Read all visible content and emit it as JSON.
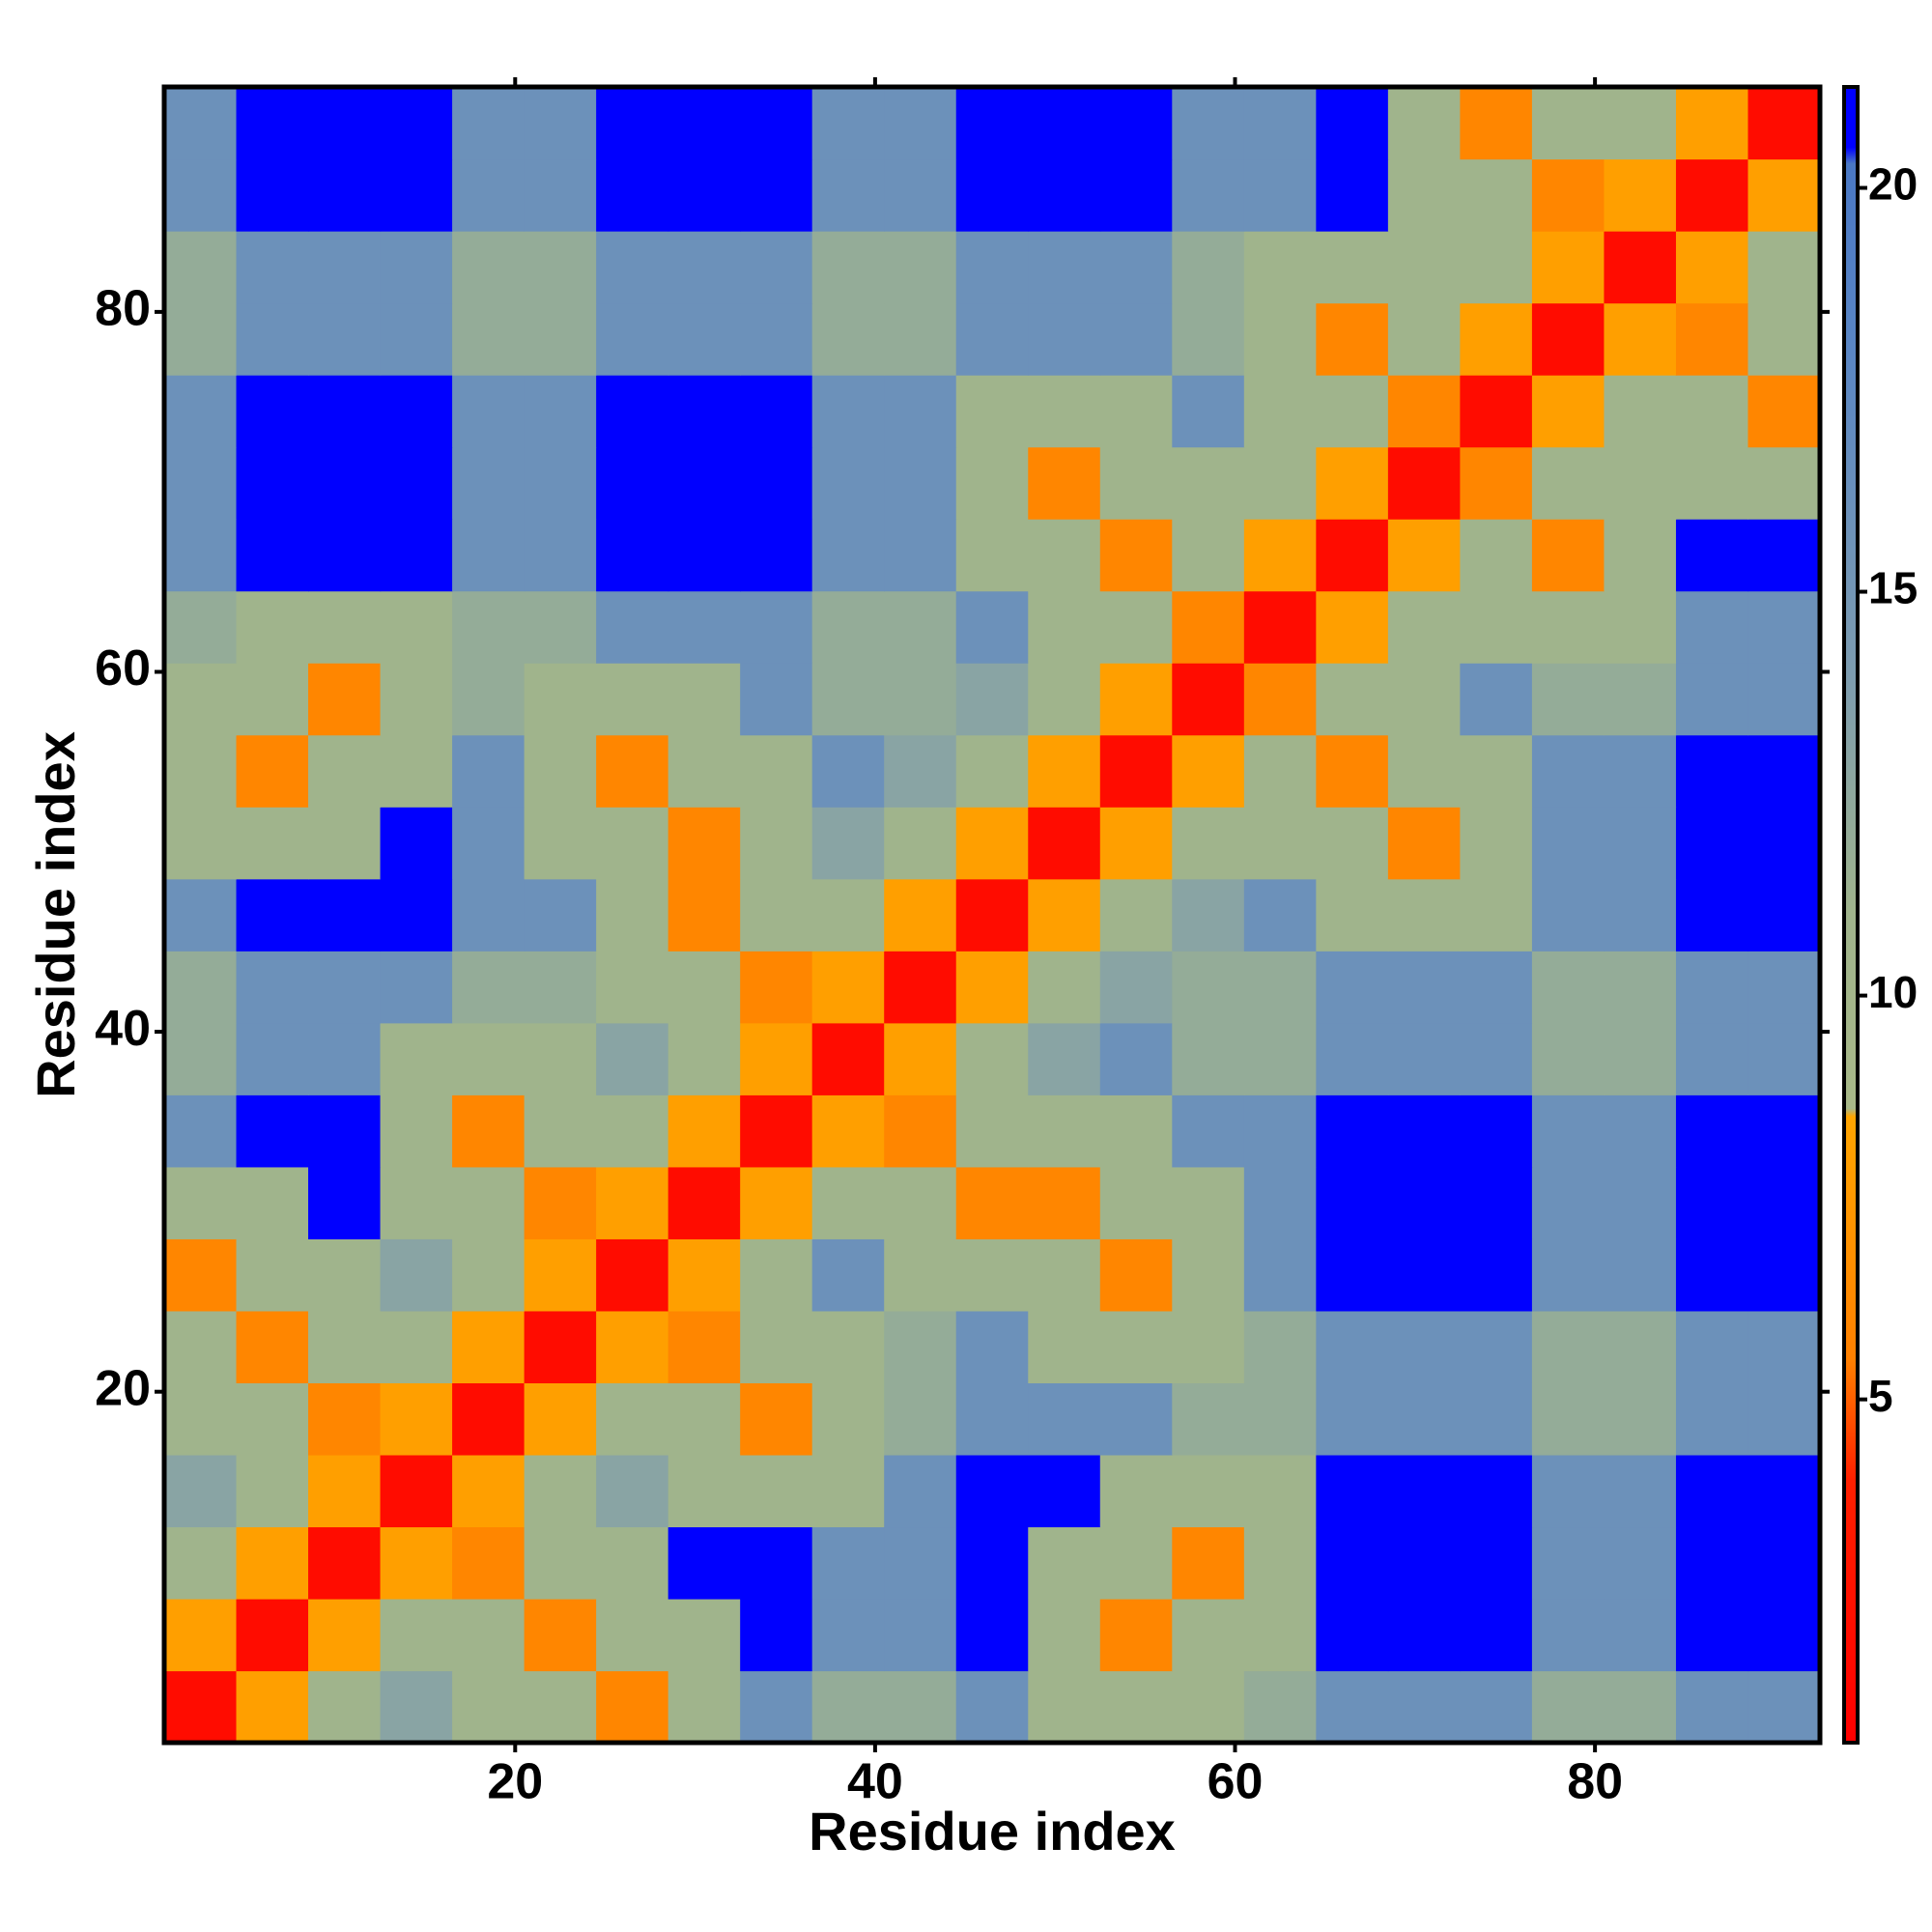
{
  "chart_data": {
    "type": "heatmap",
    "x_label": "Residue index",
    "y_label": "Residue index",
    "x": [
      2.5,
      6.5,
      10.5,
      14.5,
      18.5,
      22.5,
      26.5,
      30.5,
      34.5,
      38.5,
      42.5,
      46.5,
      50.5,
      54.5,
      58.5,
      62.5,
      66.5,
      70.5,
      74.5,
      78.5,
      82.5,
      86.5,
      90.5
    ],
    "y": [
      2.5,
      6.5,
      10.5,
      14.5,
      18.5,
      22.5,
      26.5,
      30.5,
      34.5,
      38.5,
      42.5,
      46.5,
      50.5,
      54.5,
      58.5,
      62.5,
      66.5,
      70.5,
      74.5,
      78.5,
      82.5,
      86.5,
      90.5
    ],
    "cell_size": 4,
    "z": [
      [
        2,
        8,
        11,
        13,
        11,
        11,
        6,
        11,
        16,
        12,
        12,
        16,
        11,
        11,
        11,
        12,
        16,
        16,
        16,
        12,
        12,
        16,
        16
      ],
      [
        8,
        2,
        8,
        11,
        11,
        6,
        11,
        11,
        21,
        16,
        16,
        21,
        11,
        6,
        11,
        11,
        21,
        21,
        21,
        16,
        16,
        21,
        21
      ],
      [
        11,
        8,
        2,
        8,
        6,
        11,
        11,
        21,
        21,
        16,
        16,
        21,
        11,
        11,
        6,
        11,
        21,
        21,
        21,
        16,
        16,
        21,
        21
      ],
      [
        13,
        11,
        8,
        2,
        8,
        11,
        13,
        11,
        11,
        11,
        16,
        21,
        21,
        11,
        11,
        11,
        21,
        21,
        21,
        16,
        16,
        21,
        21
      ],
      [
        11,
        11,
        6,
        8,
        2,
        8,
        11,
        11,
        6,
        11,
        12,
        16,
        16,
        16,
        12,
        12,
        16,
        16,
        16,
        12,
        12,
        16,
        16
      ],
      [
        11,
        6,
        11,
        11,
        8,
        2,
        8,
        6,
        11,
        11,
        12,
        16,
        11,
        11,
        11,
        12,
        16,
        16,
        16,
        12,
        12,
        16,
        16
      ],
      [
        6,
        11,
        11,
        13,
        11,
        8,
        2,
        8,
        11,
        16,
        11,
        11,
        11,
        6,
        11,
        16,
        21,
        21,
        21,
        16,
        16,
        21,
        21
      ],
      [
        11,
        11,
        21,
        11,
        11,
        6,
        8,
        2,
        8,
        11,
        11,
        6,
        6,
        11,
        11,
        16,
        21,
        21,
        21,
        16,
        16,
        21,
        21
      ],
      [
        16,
        21,
        21,
        11,
        6,
        11,
        11,
        8,
        2,
        8,
        6,
        11,
        11,
        11,
        16,
        16,
        21,
        21,
        21,
        16,
        16,
        21,
        21
      ],
      [
        12,
        16,
        16,
        11,
        11,
        11,
        13,
        11,
        8,
        2,
        8,
        11,
        13,
        16,
        12,
        12,
        16,
        16,
        16,
        12,
        12,
        16,
        16
      ],
      [
        12,
        16,
        16,
        16,
        12,
        12,
        11,
        11,
        6,
        8,
        2,
        8,
        11,
        13,
        12,
        12,
        16,
        16,
        16,
        12,
        12,
        16,
        16
      ],
      [
        16,
        21,
        21,
        21,
        16,
        16,
        11,
        6,
        11,
        11,
        8,
        2,
        8,
        11,
        13,
        16,
        11,
        11,
        11,
        16,
        16,
        21,
        21
      ],
      [
        11,
        11,
        11,
        21,
        16,
        11,
        11,
        6,
        11,
        13,
        11,
        8,
        2,
        8,
        11,
        11,
        11,
        6,
        11,
        16,
        16,
        21,
        21
      ],
      [
        11,
        6,
        11,
        11,
        16,
        11,
        6,
        11,
        11,
        16,
        13,
        11,
        8,
        2,
        8,
        11,
        6,
        11,
        11,
        16,
        16,
        21,
        21
      ],
      [
        11,
        11,
        6,
        11,
        12,
        11,
        11,
        11,
        16,
        12,
        12,
        13,
        11,
        8,
        2,
        6,
        11,
        11,
        16,
        12,
        12,
        16,
        16
      ],
      [
        12,
        11,
        11,
        11,
        12,
        12,
        16,
        16,
        16,
        12,
        12,
        16,
        11,
        11,
        6,
        2,
        8,
        11,
        11,
        11,
        11,
        16,
        16
      ],
      [
        16,
        21,
        21,
        21,
        16,
        16,
        21,
        21,
        21,
        16,
        16,
        11,
        11,
        6,
        11,
        8,
        2,
        8,
        11,
        6,
        11,
        21,
        21
      ],
      [
        16,
        21,
        21,
        21,
        16,
        16,
        21,
        21,
        21,
        16,
        16,
        11,
        6,
        11,
        11,
        11,
        8,
        2,
        6,
        11,
        11,
        11,
        11
      ],
      [
        16,
        21,
        21,
        21,
        16,
        16,
        21,
        21,
        21,
        16,
        16,
        11,
        11,
        11,
        16,
        11,
        11,
        6,
        2,
        8,
        11,
        11,
        6
      ],
      [
        12,
        16,
        16,
        16,
        12,
        12,
        16,
        16,
        16,
        12,
        12,
        16,
        16,
        16,
        12,
        11,
        6,
        11,
        8,
        2,
        8,
        6,
        11
      ],
      [
        12,
        16,
        16,
        16,
        12,
        12,
        16,
        16,
        16,
        12,
        12,
        16,
        16,
        16,
        12,
        11,
        11,
        11,
        11,
        8,
        2,
        8,
        11
      ],
      [
        16,
        21,
        21,
        21,
        16,
        16,
        21,
        21,
        21,
        16,
        16,
        21,
        21,
        21,
        16,
        16,
        21,
        11,
        11,
        6,
        8,
        2,
        8
      ],
      [
        16,
        21,
        21,
        21,
        16,
        16,
        21,
        21,
        21,
        16,
        16,
        21,
        21,
        21,
        16,
        16,
        21,
        11,
        6,
        11,
        11,
        8,
        2
      ]
    ],
    "xlim": [
      0.5,
      92.5
    ],
    "ylim": [
      0.5,
      92.5
    ],
    "xticks": [
      20,
      40,
      60,
      80
    ],
    "yticks": [
      20,
      40,
      60,
      80
    ],
    "zlim": [
      0.75,
      21.25
    ],
    "zticks": [
      5,
      10,
      15,
      20
    ],
    "colorscale": [
      [
        0.75,
        "#ff0000"
      ],
      [
        4,
        "#ff2000"
      ],
      [
        5.5,
        "#ff8000"
      ],
      [
        8.5,
        "#ffa500"
      ],
      [
        8.6,
        "#a8b888"
      ],
      [
        11,
        "#a0b48c"
      ],
      [
        14,
        "#7d9cb0"
      ],
      [
        18,
        "#5a86c4"
      ],
      [
        20.3,
        "#4a78c4"
      ],
      [
        20.5,
        "#0000ff"
      ],
      [
        21.25,
        "#0000ff"
      ]
    ]
  }
}
